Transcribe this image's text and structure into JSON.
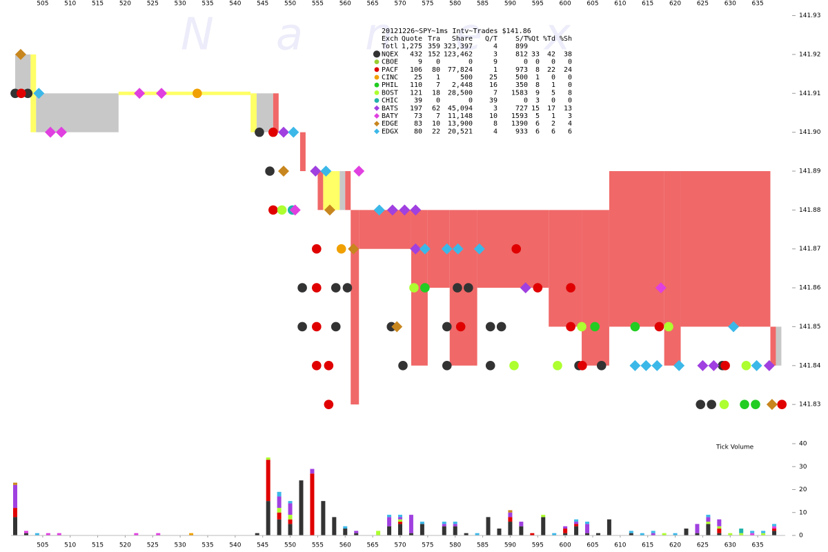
{
  "chart_data": {
    "type": "trades",
    "title": "20121226~SPY~1ms Intv~Trades $141.86",
    "watermark": "Nanex",
    "y2label": "Tick Volume",
    "xlim": [
      500,
      640
    ],
    "xticks": [
      505,
      510,
      515,
      520,
      525,
      530,
      535,
      540,
      545,
      550,
      555,
      560,
      565,
      570,
      575,
      580,
      585,
      590,
      595,
      600,
      605,
      610,
      615,
      620,
      625,
      630,
      635
    ],
    "ylim": [
      141.824,
      141.934
    ],
    "yticks": [
      141.83,
      141.84,
      141.85,
      141.86,
      141.87,
      141.88,
      141.89,
      {
        "value": 141.9,
        "label": "141.90"
      },
      141.91,
      141.92,
      141.93
    ],
    "y2lim": [
      0,
      40
    ],
    "y2ticks": [
      0,
      10,
      20,
      30,
      40
    ],
    "legend": {
      "header": [
        "Exch",
        "Quote",
        "Tra",
        "Share",
        "Q/T",
        "S/T",
        "%Qt",
        "%Td",
        "%Sh"
      ],
      "total": [
        "Totl",
        "1,275",
        "359",
        "323,397",
        "4",
        "899"
      ]
    },
    "nbbo": {
      "x0": [
        500,
        502.8,
        503.8,
        518.8,
        542.8,
        543.9,
        546.9,
        551.8,
        555,
        556,
        559,
        560,
        561,
        562.5,
        572,
        575,
        579,
        584,
        597,
        603,
        608,
        618,
        621,
        637.3,
        638.3
      ],
      "x1": [
        502.8,
        503.8,
        518.8,
        542.8,
        543.9,
        546.9,
        547.9,
        552.8,
        556,
        559,
        560,
        561,
        562.5,
        572,
        575,
        579,
        584,
        597,
        603,
        608,
        618,
        621,
        637.3,
        638.3,
        639.3
      ],
      "bid": [
        141.91,
        141.9,
        141.9,
        141.91,
        141.9,
        141.9,
        141.9,
        141.89,
        141.88,
        141.88,
        141.88,
        141.88,
        141.83,
        141.87,
        141.84,
        141.86,
        141.84,
        141.86,
        141.85,
        141.84,
        141.85,
        141.84,
        141.85,
        141.84,
        141.84
      ],
      "ask": [
        141.92,
        141.92,
        141.91,
        141.91,
        141.91,
        141.91,
        141.91,
        141.9,
        141.89,
        141.89,
        141.89,
        141.89,
        141.88,
        141.88,
        141.88,
        141.88,
        141.88,
        141.88,
        141.88,
        141.88,
        141.89,
        141.89,
        141.89,
        141.85,
        141.85
      ],
      "color": [
        "#c8c8c8",
        "#ffff66",
        "#c8c8c8",
        "#ffff66",
        "#ffff66",
        "#c8c8c8",
        "#f06868",
        "#f06868",
        "#f06868",
        "#ffff66",
        "#c8c8c8",
        "#f06868",
        "#f06868",
        "#f06868",
        "#f06868",
        "#f06868",
        "#f06868",
        "#f06868",
        "#f06868",
        "#f06868",
        "#f06868",
        "#f06868",
        "#f06868",
        "#f06868",
        "#c8c8c8"
      ]
    },
    "series": [
      {
        "name": "NQEX",
        "color": "#333333",
        "marker": "circle",
        "stats": [
          "432",
          "152",
          "123,462",
          "3",
          "812",
          "33",
          "42",
          "38"
        ],
        "trades": [
          [
            500,
            141.91
          ],
          [
            502.3,
            141.91
          ],
          [
            544.4,
            141.9
          ],
          [
            546.3,
            141.89
          ],
          [
            552.2,
            141.86
          ],
          [
            552.2,
            141.85
          ],
          [
            558.3,
            141.86
          ],
          [
            558.3,
            141.85
          ],
          [
            560.4,
            141.86
          ],
          [
            568.4,
            141.85
          ],
          [
            570.5,
            141.84
          ],
          [
            578.5,
            141.84
          ],
          [
            578.5,
            141.85
          ],
          [
            580.4,
            141.86
          ],
          [
            582.4,
            141.86
          ],
          [
            586.4,
            141.84
          ],
          [
            586.4,
            141.85
          ],
          [
            588.4,
            141.85
          ],
          [
            602.5,
            141.84
          ],
          [
            606.6,
            141.84
          ],
          [
            624.6,
            141.83
          ],
          [
            626.6,
            141.83
          ],
          [
            628.6,
            141.84
          ]
        ],
        "volume": [
          [
            500,
            8
          ],
          [
            502,
            1
          ],
          [
            544,
            1
          ],
          [
            546,
            15
          ],
          [
            548,
            7
          ],
          [
            550,
            5
          ],
          [
            552,
            24
          ],
          [
            556,
            15
          ],
          [
            558,
            8
          ],
          [
            560,
            3
          ],
          [
            562,
            1
          ],
          [
            568,
            4
          ],
          [
            570,
            5
          ],
          [
            572,
            1
          ],
          [
            574,
            5
          ],
          [
            578,
            4
          ],
          [
            580,
            4
          ],
          [
            582,
            1
          ],
          [
            586,
            8
          ],
          [
            588,
            3
          ],
          [
            590,
            6
          ],
          [
            592,
            4
          ],
          [
            596,
            8
          ],
          [
            600,
            1
          ],
          [
            602,
            4
          ],
          [
            604,
            1
          ],
          [
            606,
            1
          ],
          [
            608,
            7
          ],
          [
            612,
            1
          ],
          [
            622,
            3
          ],
          [
            624,
            1
          ],
          [
            626,
            5
          ],
          [
            628,
            1
          ],
          [
            638,
            2
          ]
        ]
      },
      {
        "name": "CBOE",
        "color": "#9acd32",
        "marker": "circle",
        "stats": [
          "9",
          "0",
          "0",
          "9",
          "0",
          "0",
          "0",
          "0"
        ],
        "trades": [],
        "volume": []
      },
      {
        "name": "PACF",
        "color": "#e00000",
        "marker": "circle",
        "stats": [
          "106",
          "80",
          "77,824",
          "1",
          "973",
          "8",
          "22",
          "24"
        ],
        "trades": [
          [
            501.1,
            141.91
          ],
          [
            546.9,
            141.9
          ],
          [
            546.9,
            141.88
          ],
          [
            554.8,
            141.87
          ],
          [
            554.8,
            141.86
          ],
          [
            554.8,
            141.85
          ],
          [
            554.8,
            141.84
          ],
          [
            557,
            141.84
          ],
          [
            557,
            141.83
          ],
          [
            581,
            141.85
          ],
          [
            591.1,
            141.87
          ],
          [
            595,
            141.86
          ],
          [
            601,
            141.86
          ],
          [
            601,
            141.85
          ],
          [
            603.1,
            141.84
          ],
          [
            617.1,
            141.85
          ],
          [
            629.1,
            141.84
          ],
          [
            639.4,
            141.83
          ]
        ],
        "volume": [
          [
            500,
            4
          ],
          [
            546,
            18
          ],
          [
            548,
            3
          ],
          [
            550,
            2
          ],
          [
            554,
            27
          ],
          [
            570,
            1
          ],
          [
            590,
            2
          ],
          [
            594,
            1
          ],
          [
            600,
            2
          ],
          [
            602,
            1
          ],
          [
            628,
            2
          ],
          [
            638,
            1
          ]
        ]
      },
      {
        "name": "CINC",
        "color": "#f0a000",
        "marker": "circle",
        "stats": [
          "25",
          "1",
          "500",
          "25",
          "500",
          "1",
          "0",
          "0"
        ],
        "trades": [
          [
            533.1,
            141.91
          ],
          [
            559.3,
            141.87
          ]
        ],
        "volume": [
          [
            532,
            1
          ]
        ]
      },
      {
        "name": "PHIL",
        "color": "#22cc22",
        "marker": "circle",
        "stats": [
          "110",
          "7",
          "2,448",
          "16",
          "350",
          "8",
          "1",
          "0"
        ],
        "trades": [
          [
            574.5,
            141.86
          ],
          [
            605.4,
            141.85
          ],
          [
            612.7,
            141.85
          ],
          [
            632.6,
            141.83
          ],
          [
            634.6,
            141.83
          ]
        ],
        "volume": []
      },
      {
        "name": "BOST",
        "color": "#adff2f",
        "marker": "circle",
        "stats": [
          "121",
          "18",
          "28,500",
          "7",
          "1583",
          "9",
          "5",
          "8"
        ],
        "trades": [
          [
            548.5,
            141.88
          ],
          [
            572.5,
            141.86
          ],
          [
            590.7,
            141.84
          ],
          [
            598.6,
            141.84
          ],
          [
            603,
            141.85
          ],
          [
            618.8,
            141.85
          ],
          [
            628.9,
            141.83
          ],
          [
            632.9,
            141.84
          ]
        ],
        "volume": [
          [
            546,
            1
          ],
          [
            548,
            2
          ],
          [
            550,
            2
          ],
          [
            566,
            2
          ],
          [
            570,
            1
          ],
          [
            596,
            1
          ],
          [
            618,
            1
          ],
          [
            626,
            1
          ],
          [
            628,
            1
          ],
          [
            630,
            1
          ],
          [
            632,
            1
          ],
          [
            636,
            1
          ]
        ]
      },
      {
        "name": "CHIC",
        "color": "#20b2aa",
        "marker": "circle",
        "stats": [
          "39",
          "0",
          "0",
          "39",
          "0",
          "3",
          "0",
          "0"
        ],
        "trades": [
          [
            550.4,
            141.88
          ]
        ],
        "volume": [
          [
            632,
            2
          ]
        ]
      },
      {
        "name": "BATS",
        "color": "#a040e0",
        "marker": "diamond",
        "stats": [
          "197",
          "62",
          "45,094",
          "3",
          "727",
          "15",
          "17",
          "13"
        ],
        "trades": [
          [
            548.8,
            141.9
          ],
          [
            554.6,
            141.89
          ],
          [
            568.6,
            141.88
          ],
          [
            570.8,
            141.88
          ],
          [
            572.8,
            141.88
          ],
          [
            572.8,
            141.87
          ],
          [
            592.8,
            141.86
          ],
          [
            625,
            141.84
          ],
          [
            627,
            141.84
          ],
          [
            637.1,
            141.84
          ]
        ],
        "volume": [
          [
            500,
            10
          ],
          [
            548,
            5
          ],
          [
            550,
            5
          ],
          [
            554,
            2
          ],
          [
            562,
            1
          ],
          [
            568,
            4
          ],
          [
            570,
            1
          ],
          [
            572,
            8
          ],
          [
            578,
            1
          ],
          [
            580,
            1
          ],
          [
            590,
            2
          ],
          [
            592,
            2
          ],
          [
            600,
            1
          ],
          [
            602,
            1
          ],
          [
            604,
            4
          ],
          [
            616,
            1
          ],
          [
            624,
            4
          ],
          [
            626,
            2
          ],
          [
            628,
            3
          ]
        ]
      },
      {
        "name": "BATY",
        "color": "#e040e0",
        "marker": "diamond",
        "stats": [
          "73",
          "7",
          "11,148",
          "10",
          "1593",
          "5",
          "1",
          "3"
        ],
        "trades": [
          [
            506.4,
            141.9
          ],
          [
            508.4,
            141.9
          ],
          [
            522.6,
            141.91
          ],
          [
            526.6,
            141.91
          ],
          [
            550.9,
            141.88
          ],
          [
            562.5,
            141.89
          ],
          [
            617.4,
            141.86
          ]
        ],
        "volume": [
          [
            502,
            1
          ],
          [
            506,
            1
          ],
          [
            508,
            1
          ],
          [
            522,
            1
          ],
          [
            526,
            1
          ],
          [
            634,
            1
          ],
          [
            638,
            1
          ]
        ]
      },
      {
        "name": "EDGE",
        "color": "#c8861e",
        "marker": "diamond",
        "stats": [
          "83",
          "10",
          "13,900",
          "8",
          "1390",
          "6",
          "2",
          "4"
        ],
        "trades": [
          [
            501,
            141.92
          ],
          [
            548.8,
            141.89
          ],
          [
            557.2,
            141.88
          ],
          [
            561.5,
            141.87
          ],
          [
            569.4,
            141.85
          ],
          [
            637.6,
            141.83
          ]
        ],
        "volume": [
          [
            500,
            1
          ],
          [
            590,
            1
          ]
        ]
      },
      {
        "name": "EDGX",
        "color": "#3cb8e8",
        "marker": "diamond",
        "stats": [
          "80",
          "22",
          "20,521",
          "4",
          "933",
          "6",
          "6",
          "6"
        ],
        "trades": [
          [
            504.3,
            141.91
          ],
          [
            550.6,
            141.9
          ],
          [
            556.5,
            141.89
          ],
          [
            566.2,
            141.88
          ],
          [
            574.5,
            141.87
          ],
          [
            578.5,
            141.87
          ],
          [
            580.5,
            141.87
          ],
          [
            584.4,
            141.87
          ],
          [
            612.7,
            141.84
          ],
          [
            614.7,
            141.84
          ],
          [
            616.7,
            141.84
          ],
          [
            620.7,
            141.84
          ],
          [
            630.6,
            141.85
          ],
          [
            634.8,
            141.84
          ]
        ],
        "volume": [
          [
            504,
            1
          ],
          [
            548,
            2
          ],
          [
            550,
            1
          ],
          [
            560,
            1
          ],
          [
            568,
            1
          ],
          [
            570,
            1
          ],
          [
            574,
            1
          ],
          [
            578,
            1
          ],
          [
            580,
            1
          ],
          [
            584,
            1
          ],
          [
            598,
            1
          ],
          [
            602,
            1
          ],
          [
            604,
            1
          ],
          [
            612,
            1
          ],
          [
            614,
            1
          ],
          [
            616,
            1
          ],
          [
            620,
            1
          ],
          [
            626,
            1
          ],
          [
            634,
            1
          ],
          [
            636,
            1
          ],
          [
            638,
            1
          ]
        ]
      }
    ]
  }
}
